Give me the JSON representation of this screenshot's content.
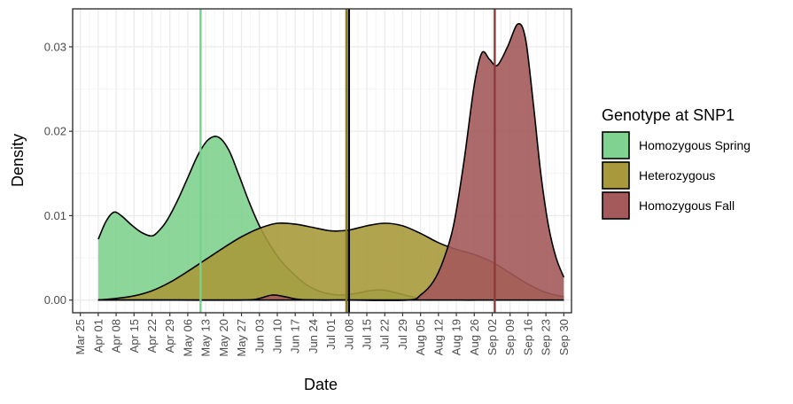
{
  "chart_data": {
    "type": "area",
    "title": "",
    "xlabel": "Date",
    "ylabel": "Density",
    "x_ticks": [
      "Mar 25",
      "Apr 01",
      "Apr 08",
      "Apr 15",
      "Apr 22",
      "Apr 29",
      "May 06",
      "May 13",
      "May 20",
      "May 27",
      "Jun 03",
      "Jun 10",
      "Jun 17",
      "Jun 24",
      "Jul 01",
      "Jul 08",
      "Jul 15",
      "Jul 22",
      "Jul 29",
      "Aug 05",
      "Aug 12",
      "Aug 19",
      "Aug 26",
      "Sep 02",
      "Sep 09",
      "Sep 16",
      "Sep 23",
      "Sep 30"
    ],
    "y_ticks": [
      "0.00",
      "0.01",
      "0.02",
      "0.03"
    ],
    "xlim": [
      "2024-03-22",
      "2024-10-03"
    ],
    "ylim": [
      -0.0015,
      0.0345
    ],
    "grid": true,
    "legend": {
      "title": "Genotype at SNP1",
      "position": "right"
    },
    "series": [
      {
        "name": "Homozygous Spring",
        "color": "#7fd28f",
        "mean_line": "2024-05-11",
        "mean_line_color": "#74d38a",
        "points": [
          [
            "2024-04-01",
            0.0072
          ],
          [
            "2024-04-04",
            0.0093
          ],
          [
            "2024-04-07",
            0.0104
          ],
          [
            "2024-04-10",
            0.01
          ],
          [
            "2024-04-14",
            0.0089
          ],
          [
            "2024-04-18",
            0.008
          ],
          [
            "2024-04-22",
            0.0076
          ],
          [
            "2024-04-25",
            0.0083
          ],
          [
            "2024-04-28",
            0.0095
          ],
          [
            "2024-05-02",
            0.0118
          ],
          [
            "2024-05-06",
            0.0145
          ],
          [
            "2024-05-10",
            0.0172
          ],
          [
            "2024-05-14",
            0.019
          ],
          [
            "2024-05-18",
            0.0193
          ],
          [
            "2024-05-22",
            0.0178
          ],
          [
            "2024-05-26",
            0.0148
          ],
          [
            "2024-05-30",
            0.0116
          ],
          [
            "2024-06-03",
            0.0088
          ],
          [
            "2024-06-07",
            0.0066
          ],
          [
            "2024-06-11",
            0.0048
          ],
          [
            "2024-06-16",
            0.0032
          ],
          [
            "2024-06-21",
            0.0019
          ],
          [
            "2024-06-26",
            0.0011
          ],
          [
            "2024-07-01",
            0.0007
          ],
          [
            "2024-07-06",
            0.0006
          ],
          [
            "2024-07-11",
            0.0008
          ],
          [
            "2024-07-16",
            0.0011
          ],
          [
            "2024-07-21",
            0.0012
          ],
          [
            "2024-07-26",
            0.0009
          ],
          [
            "2024-07-31",
            0.0005
          ],
          [
            "2024-08-05",
            0.0002
          ],
          [
            "2024-08-12",
            0.0001
          ],
          [
            "2024-08-20",
            0.0
          ],
          [
            "2024-09-01",
            0.0
          ],
          [
            "2024-09-15",
            0.0
          ],
          [
            "2024-09-30",
            0.0
          ]
        ]
      },
      {
        "name": "Heterozygous",
        "color": "#a89a3c",
        "mean_line": "2024-07-07",
        "mean_line_color": "#8a7a1a",
        "points": [
          [
            "2024-04-01",
            0.0
          ],
          [
            "2024-04-08",
            0.0002
          ],
          [
            "2024-04-15",
            0.0005
          ],
          [
            "2024-04-22",
            0.0011
          ],
          [
            "2024-04-29",
            0.0021
          ],
          [
            "2024-05-06",
            0.0034
          ],
          [
            "2024-05-13",
            0.0048
          ],
          [
            "2024-05-20",
            0.0062
          ],
          [
            "2024-05-27",
            0.0075
          ],
          [
            "2024-06-03",
            0.0085
          ],
          [
            "2024-06-10",
            0.0091
          ],
          [
            "2024-06-17",
            0.009
          ],
          [
            "2024-06-24",
            0.0086
          ],
          [
            "2024-07-01",
            0.0082
          ],
          [
            "2024-07-08",
            0.0083
          ],
          [
            "2024-07-15",
            0.0088
          ],
          [
            "2024-07-22",
            0.0091
          ],
          [
            "2024-07-29",
            0.0088
          ],
          [
            "2024-08-05",
            0.0079
          ],
          [
            "2024-08-12",
            0.0068
          ],
          [
            "2024-08-19",
            0.006
          ],
          [
            "2024-08-26",
            0.0054
          ],
          [
            "2024-09-02",
            0.0045
          ],
          [
            "2024-09-09",
            0.0032
          ],
          [
            "2024-09-16",
            0.0019
          ],
          [
            "2024-09-23",
            0.0009
          ],
          [
            "2024-09-30",
            0.0004
          ]
        ]
      },
      {
        "name": "Homozygous Fall",
        "color": "#a45a5a",
        "mean_line": "2024-09-03",
        "mean_line_color": "#8c3a3a",
        "points": [
          [
            "2024-04-01",
            0.0
          ],
          [
            "2024-05-01",
            0.0
          ],
          [
            "2024-05-28",
            0.0
          ],
          [
            "2024-06-03",
            0.0002
          ],
          [
            "2024-06-08",
            0.0006
          ],
          [
            "2024-06-13",
            0.0004
          ],
          [
            "2024-06-18",
            0.0001
          ],
          [
            "2024-06-25",
            0.0
          ],
          [
            "2024-07-08",
            0.0
          ],
          [
            "2024-07-31",
            0.0
          ],
          [
            "2024-08-05",
            0.0006
          ],
          [
            "2024-08-10",
            0.0022
          ],
          [
            "2024-08-14",
            0.0048
          ],
          [
            "2024-08-18",
            0.009
          ],
          [
            "2024-08-22",
            0.0165
          ],
          [
            "2024-08-26",
            0.0255
          ],
          [
            "2024-08-29",
            0.0293
          ],
          [
            "2024-09-01",
            0.0285
          ],
          [
            "2024-09-04",
            0.0278
          ],
          [
            "2024-09-08",
            0.03
          ],
          [
            "2024-09-12",
            0.0327
          ],
          [
            "2024-09-15",
            0.031
          ],
          [
            "2024-09-18",
            0.0235
          ],
          [
            "2024-09-21",
            0.015
          ],
          [
            "2024-09-24",
            0.0088
          ],
          [
            "2024-09-27",
            0.005
          ],
          [
            "2024-09-30",
            0.0027
          ]
        ]
      }
    ],
    "reference_line": {
      "date": "2024-07-08",
      "color": "#000000"
    }
  }
}
